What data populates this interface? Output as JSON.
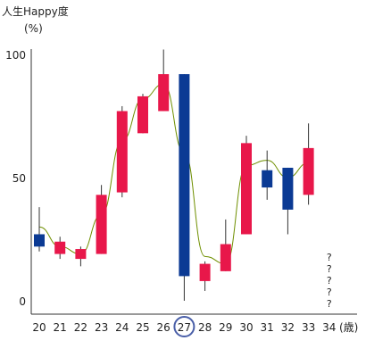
{
  "chart_data": {
    "type": "candlestick",
    "title": "",
    "ylabel": "人生Happy度",
    "yunit": "(%)",
    "xunit": "(歳)",
    "ylim": [
      0,
      100
    ],
    "yticks": [
      0,
      50,
      100
    ],
    "categories": [
      "20",
      "21",
      "22",
      "23",
      "24",
      "25",
      "26",
      "27",
      "28",
      "29",
      "30",
      "31",
      "32",
      "33",
      "34"
    ],
    "candles": [
      {
        "x": "20",
        "open": 27,
        "close": 22,
        "high": 38,
        "low": 20
      },
      {
        "x": "21",
        "open": 19,
        "close": 24,
        "high": 26,
        "low": 17
      },
      {
        "x": "22",
        "open": 17,
        "close": 21,
        "high": 22,
        "low": 14
      },
      {
        "x": "23",
        "open": 19,
        "close": 43,
        "high": 47,
        "low": 19
      },
      {
        "x": "24",
        "open": 44,
        "close": 77,
        "high": 79,
        "low": 42
      },
      {
        "x": "25",
        "open": 68,
        "close": 83,
        "high": 84,
        "low": 68
      },
      {
        "x": "26",
        "open": 77,
        "close": 92,
        "high": 102,
        "low": 77
      },
      {
        "x": "27",
        "open": 92,
        "close": 10,
        "high": 92,
        "low": 0
      },
      {
        "x": "28",
        "open": 8,
        "close": 15,
        "high": 16,
        "low": 4
      },
      {
        "x": "29",
        "open": 12,
        "close": 23,
        "high": 33,
        "low": 12
      },
      {
        "x": "30",
        "open": 27,
        "close": 64,
        "high": 67,
        "low": 27
      },
      {
        "x": "31",
        "open": 53,
        "close": 46,
        "high": 61,
        "low": 41
      },
      {
        "x": "32",
        "open": 54,
        "close": 37,
        "high": 54,
        "low": 27
      },
      {
        "x": "33",
        "open": 43,
        "close": 62,
        "high": 72,
        "low": 39
      }
    ],
    "trend_line": [
      30,
      22,
      19,
      35,
      65,
      82,
      88,
      60,
      18,
      15,
      55,
      57,
      50,
      56
    ],
    "unknown": {
      "x": "34",
      "marks": [
        "?",
        "?",
        "?",
        "?",
        "?"
      ]
    },
    "highlight": "27",
    "colors": {
      "up": "#e8174a",
      "down": "#0b3a94",
      "wick": "#333333",
      "trend": "#6f8f00",
      "highlight": "#4a5fa8",
      "axis": "#333333"
    }
  }
}
